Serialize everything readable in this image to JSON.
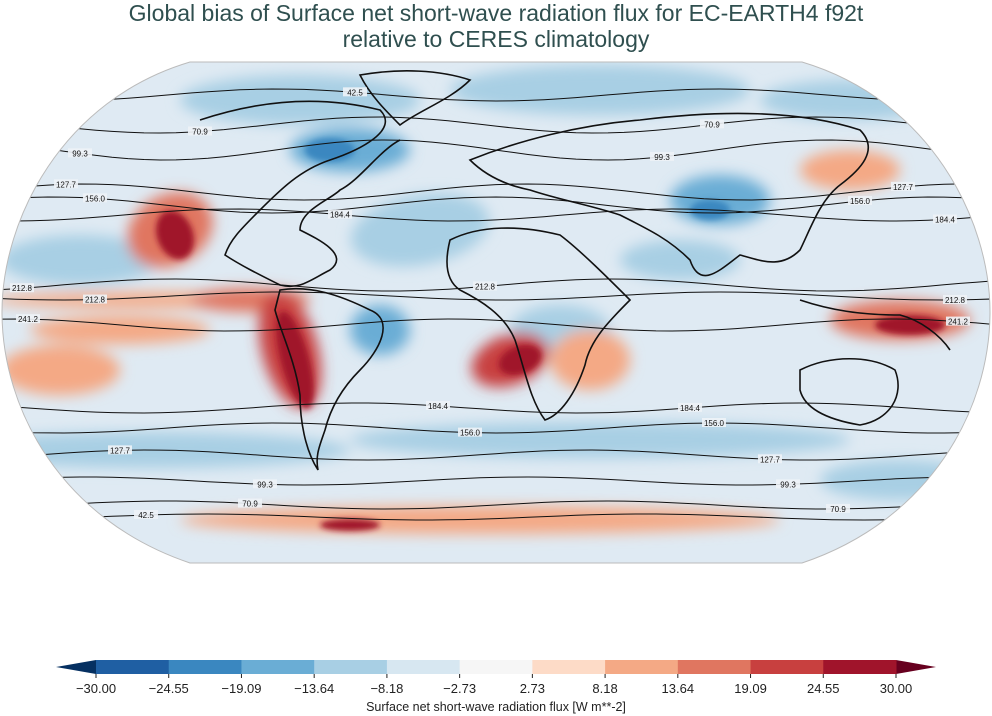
{
  "title_line1": "Global bias of Surface net short-wave radiation flux for EC-EARTH4 f92t",
  "title_line2": "relative to CERES climatology",
  "chart_data": {
    "type": "heatmap",
    "projection": "Robinson",
    "title": "Global bias of Surface net short-wave radiation flux for EC-EARTH4 f92t relative to CERES climatology",
    "colorbar": {
      "label": "Surface net short-wave radiation flux [W m**-2]",
      "ticks": [
        "−30.00",
        "−24.55",
        "−19.09",
        "−13.64",
        "−8.18",
        "−2.73",
        "2.73",
        "8.18",
        "13.64",
        "19.09",
        "24.55",
        "30.00"
      ],
      "range": [
        -30,
        30
      ],
      "extend": "both",
      "colors": [
        "#1f5fa3",
        "#3a87c0",
        "#6aadd5",
        "#a8cfe4",
        "#d7e7f1",
        "#f6f6f6",
        "#fddbc7",
        "#f4a985",
        "#e07660",
        "#c8403f",
        "#a0142b"
      ],
      "under_color": "#053061",
      "over_color": "#67001f"
    },
    "contour_levels": [
      "42.5",
      "70.9",
      "99.3",
      "127.7",
      "156.0",
      "184.4",
      "212.8",
      "241.2"
    ]
  }
}
